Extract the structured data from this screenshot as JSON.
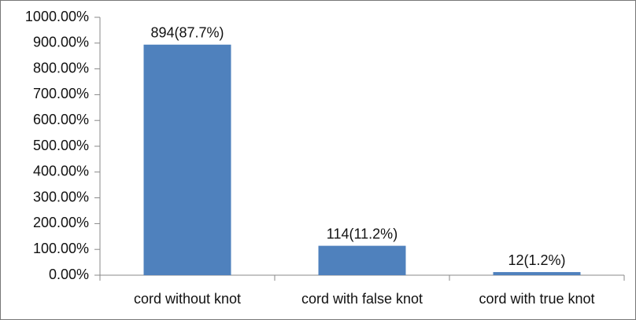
{
  "chart_data": {
    "type": "bar",
    "categories": [
      "cord without knot",
      "cord with false knot",
      "cord with true knot"
    ],
    "values": [
      894,
      114,
      12
    ],
    "value_labels": [
      "894(87.7%)",
      "114(11.2%)",
      "12(1.2%)"
    ],
    "color": "#4f81bd",
    "ylim": [
      0,
      1000
    ],
    "yticks": [
      {
        "value": 0,
        "label": "0.00%"
      },
      {
        "value": 100,
        "label": "100.00%"
      },
      {
        "value": 200,
        "label": "200.00%"
      },
      {
        "value": 300,
        "label": "300.00%"
      },
      {
        "value": 400,
        "label": "400.00%"
      },
      {
        "value": 500,
        "label": "500.00%"
      },
      {
        "value": 600,
        "label": "600.00%"
      },
      {
        "value": 700,
        "label": "700.00%"
      },
      {
        "value": 800,
        "label": "800.00%"
      },
      {
        "value": 900,
        "label": "900.00%"
      },
      {
        "value": 1000,
        "label": "1000.00%"
      }
    ],
    "grid": false
  }
}
